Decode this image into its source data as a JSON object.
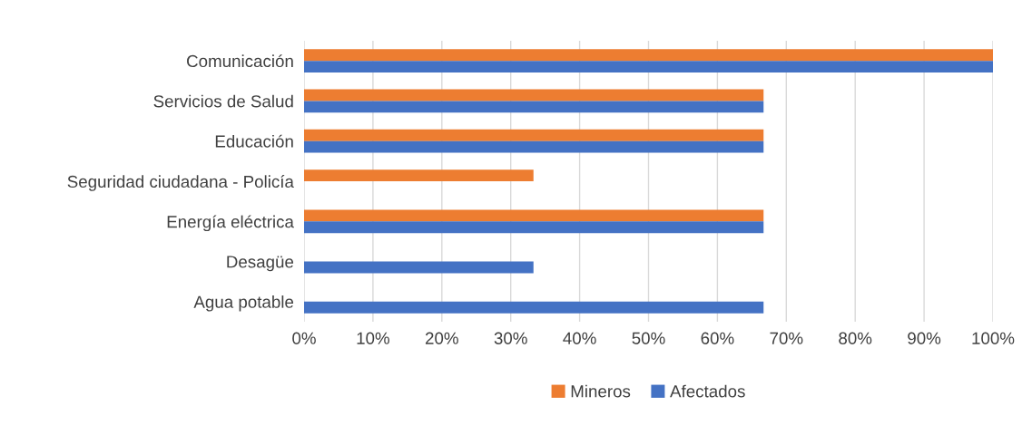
{
  "chart_data": {
    "type": "bar",
    "orientation": "horizontal",
    "categories": [
      "Comunicación",
      "Servicios de Salud",
      "Educación",
      "Seguridad ciudadana - Policía",
      "Energía eléctrica",
      "Desagüe",
      "Agua potable"
    ],
    "series": [
      {
        "name": "Mineros",
        "color": "#ed7d31",
        "values": [
          100,
          66.7,
          66.7,
          33.3,
          66.7,
          null,
          null
        ]
      },
      {
        "name": "Afectados",
        "color": "#4472c4",
        "values": [
          100,
          66.7,
          66.7,
          null,
          66.7,
          33.3,
          66.7
        ]
      }
    ],
    "xlim": [
      0,
      100
    ],
    "xticks": [
      {
        "value": 0,
        "label": "0%"
      },
      {
        "value": 10,
        "label": "10%"
      },
      {
        "value": 20,
        "label": "20%"
      },
      {
        "value": 30,
        "label": "30%"
      },
      {
        "value": 40,
        "label": "40%"
      },
      {
        "value": 50,
        "label": "50%"
      },
      {
        "value": 60,
        "label": "60%"
      },
      {
        "value": 70,
        "label": "70%"
      },
      {
        "value": 80,
        "label": "80%"
      },
      {
        "value": 90,
        "label": "90%"
      },
      {
        "value": 100,
        "label": "100%"
      }
    ],
    "grid": "x",
    "legend": "bottom"
  }
}
